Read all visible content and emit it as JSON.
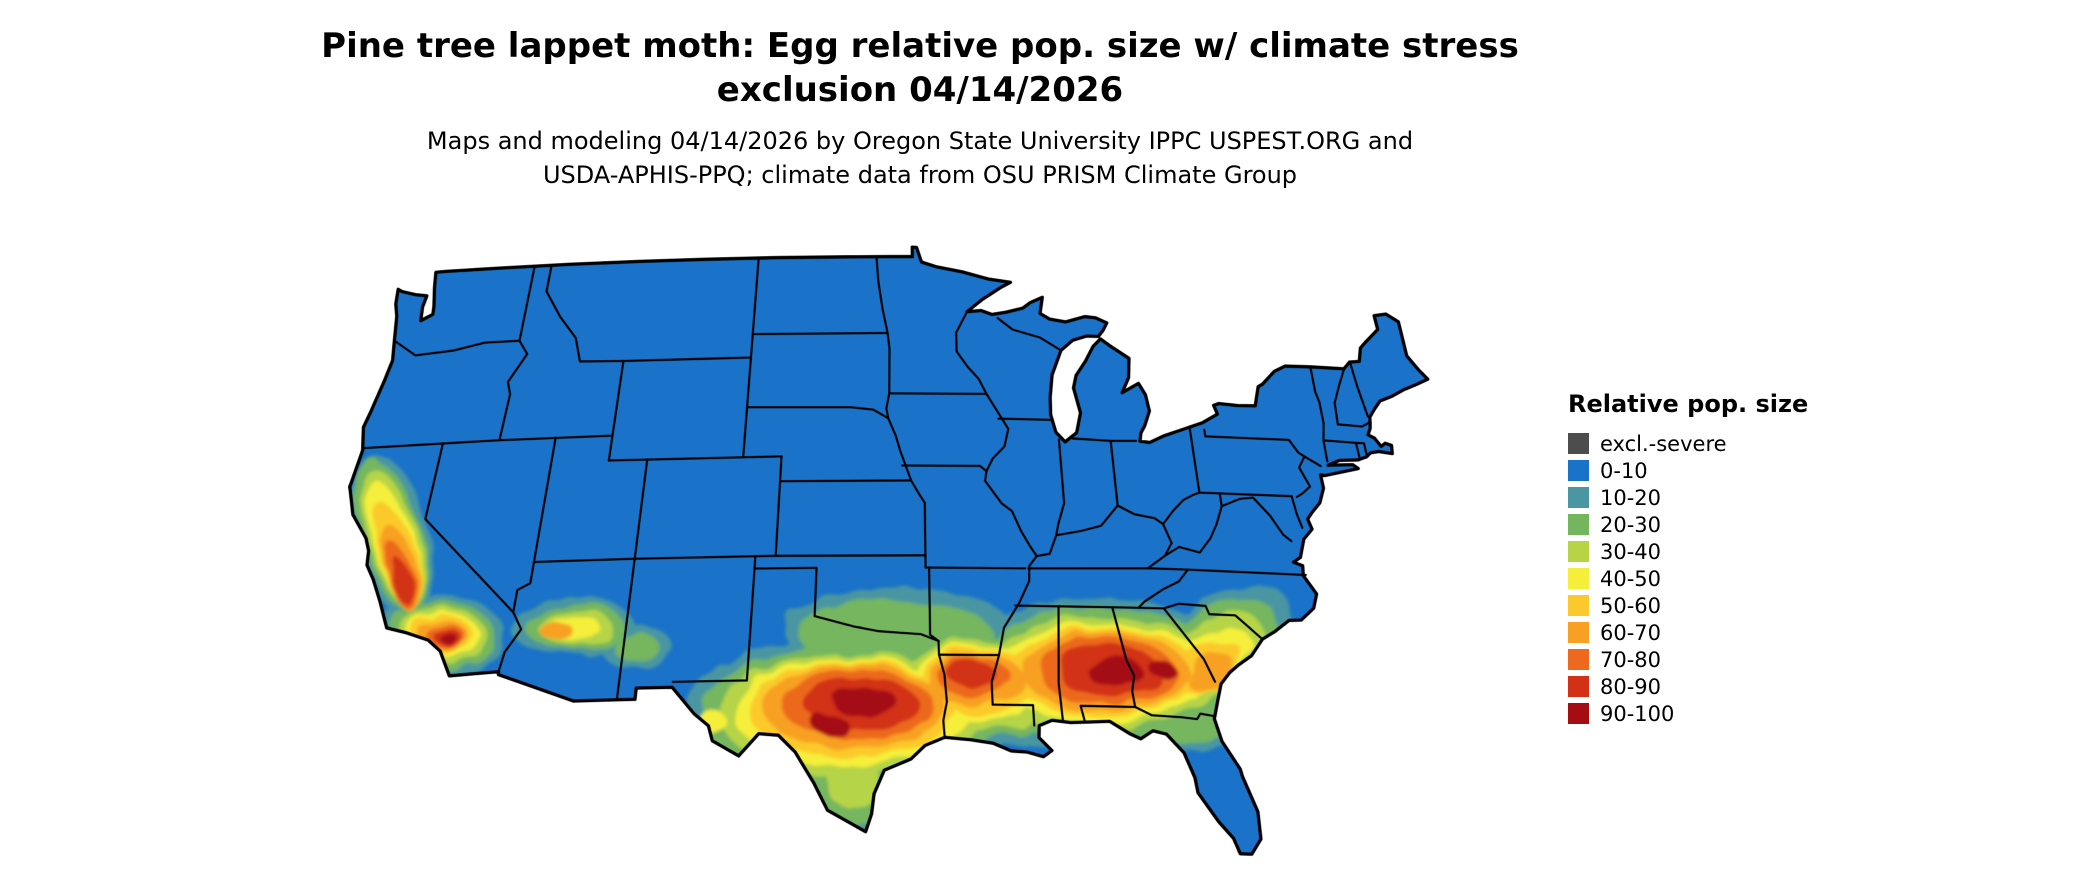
{
  "title": {
    "line1": "Pine tree lappet moth: Egg relative pop. size w/ climate stress",
    "line2": "exclusion 04/14/2026"
  },
  "subtitle": {
    "line1": "Maps and modeling 04/14/2026 by Oregon State University IPPC USPEST.ORG and",
    "line2": "USDA-APHIS-PPQ; climate data from OSU PRISM Climate Group"
  },
  "legend": {
    "title": "Relative pop. size",
    "items": [
      {
        "label": "excl.-severe",
        "color": "#4d4d4d"
      },
      {
        "label": "0-10",
        "color": "#1a73c8"
      },
      {
        "label": "10-20",
        "color": "#4a96a2"
      },
      {
        "label": "20-30",
        "color": "#74b65e"
      },
      {
        "label": "30-40",
        "color": "#b6d446"
      },
      {
        "label": "40-50",
        "color": "#f5ee3a"
      },
      {
        "label": "50-60",
        "color": "#fcc92c"
      },
      {
        "label": "60-70",
        "color": "#f8a023"
      },
      {
        "label": "70-80",
        "color": "#ec691d"
      },
      {
        "label": "80-90",
        "color": "#d23115"
      },
      {
        "label": "90-100",
        "color": "#a50d12"
      }
    ]
  },
  "map": {
    "dominant_category": "0-10",
    "state_border_color": "#000000",
    "background_color": "#ffffff"
  }
}
